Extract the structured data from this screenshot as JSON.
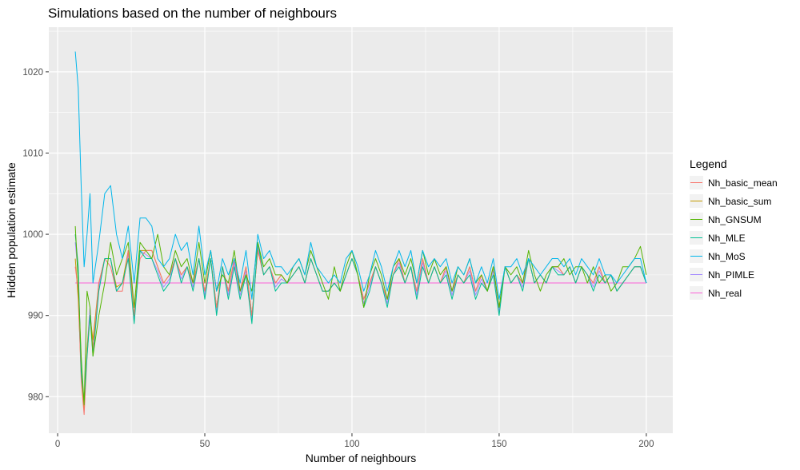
{
  "chart_data": {
    "type": "line",
    "title": "Simulations based on the number of neighbours",
    "xlabel": "Number of neighbours",
    "ylabel": "Hidden population estimate",
    "xlim": [
      -3,
      209
    ],
    "ylim": [
      975.5,
      1025.5
    ],
    "x_ticks": [
      0,
      50,
      100,
      150,
      200
    ],
    "y_ticks": [
      980,
      990,
      1000,
      1010,
      1020
    ],
    "grid": true,
    "legend": {
      "title": "Legend",
      "position": "right"
    },
    "series": [
      {
        "name": "Nh_basic_mean",
        "color": "#F8766D",
        "key": "basic_mean"
      },
      {
        "name": "Nh_basic_sum",
        "color": "#C49A00",
        "key": "basic_sum"
      },
      {
        "name": "Nh_GNSUM",
        "color": "#53B400",
        "key": "gnsum"
      },
      {
        "name": "Nh_MLE",
        "color": "#00C094",
        "key": "mle"
      },
      {
        "name": "Nh_MoS",
        "color": "#00B6EB",
        "key": "mos"
      },
      {
        "name": "Nh_PIMLE",
        "color": "#A58AFF",
        "key": "pimle"
      },
      {
        "name": "Nh_real",
        "color": "#FB61D7",
        "key": "real"
      }
    ],
    "x": [
      6,
      7,
      8,
      9,
      10,
      11,
      12,
      14,
      16,
      18,
      20,
      22,
      24,
      26,
      28,
      30,
      32,
      34,
      36,
      38,
      40,
      42,
      44,
      46,
      48,
      50,
      52,
      54,
      56,
      58,
      60,
      62,
      64,
      66,
      68,
      70,
      72,
      74,
      76,
      78,
      80,
      82,
      84,
      86,
      88,
      90,
      92,
      94,
      96,
      98,
      100,
      102,
      104,
      106,
      108,
      110,
      112,
      114,
      116,
      118,
      120,
      122,
      124,
      126,
      128,
      130,
      132,
      134,
      136,
      138,
      140,
      142,
      144,
      146,
      148,
      150,
      152,
      154,
      156,
      158,
      160,
      162,
      164,
      166,
      168,
      170,
      172,
      174,
      176,
      178,
      180,
      182,
      184,
      186,
      188,
      190,
      192,
      194,
      196,
      198,
      200
    ],
    "values": {
      "basic_mean": [
        996,
        993,
        982,
        977.8,
        985,
        990,
        986,
        994,
        997,
        996,
        993,
        993,
        998,
        990,
        997,
        998,
        998,
        996,
        994,
        995,
        997,
        995,
        996,
        994,
        997,
        993,
        997,
        991,
        996,
        993,
        997,
        993,
        996,
        990,
        998,
        995,
        996,
        994,
        995,
        994,
        995,
        996,
        994,
        997,
        995,
        993,
        993,
        994,
        993,
        995,
        997,
        995,
        992,
        994,
        996,
        994,
        992,
        995,
        997,
        994,
        996,
        993,
        997,
        994,
        996,
        994,
        996,
        993,
        995,
        994,
        996,
        993,
        995,
        993,
        996,
        991,
        996,
        994,
        995,
        994,
        997,
        994,
        995,
        994,
        996,
        996,
        995,
        996,
        994,
        996,
        995,
        994,
        996,
        994,
        995,
        993,
        994,
        995,
        996,
        996,
        994
      ],
      "basic_sum": [
        997,
        992,
        983,
        978.5,
        986,
        990,
        987,
        994,
        997,
        997,
        993.5,
        994,
        998,
        990,
        998,
        998,
        998,
        996,
        994,
        995,
        997,
        995,
        996,
        994,
        997,
        993,
        997,
        991,
        996,
        993,
        997,
        993,
        996,
        990,
        998,
        995,
        996,
        994,
        995,
        994,
        995,
        996,
        994,
        997,
        995,
        993,
        993,
        994,
        993,
        995,
        997,
        995,
        992,
        994,
        996,
        994,
        992,
        995,
        997,
        994,
        996,
        993,
        997,
        994,
        996,
        994,
        996,
        993,
        995,
        994,
        996,
        993,
        995,
        993,
        996,
        991,
        996,
        994,
        995,
        994,
        997,
        994,
        995,
        994,
        996,
        996,
        995,
        996,
        994,
        996,
        995,
        994,
        996,
        994,
        995,
        993,
        994,
        995,
        996,
        996,
        994
      ],
      "gnsum": [
        1001,
        994,
        985,
        979,
        993,
        991,
        985,
        990,
        994,
        999,
        995,
        997,
        999,
        991,
        999,
        998,
        997,
        1000,
        996,
        995,
        998,
        996,
        997,
        994,
        999,
        994,
        998,
        993,
        995,
        994,
        998,
        993,
        995,
        993,
        999,
        996,
        997,
        995,
        995,
        994,
        996,
        997,
        995,
        998,
        996,
        994,
        992,
        996,
        993,
        996,
        998,
        995,
        991,
        995,
        997,
        995,
        992,
        996,
        997,
        995,
        997,
        994,
        998,
        995,
        997,
        995,
        996,
        993,
        996,
        995,
        997,
        994,
        995,
        993,
        996,
        991,
        996,
        995,
        996,
        994,
        998,
        995,
        993,
        995,
        996,
        996,
        997,
        995,
        996,
        996,
        994,
        996,
        994,
        995,
        993,
        994,
        996,
        996,
        997,
        998.5,
        995
      ],
      "mle": [
        1000,
        996,
        983,
        979.5,
        985,
        990,
        985,
        993,
        997,
        997,
        993,
        994,
        997,
        989,
        998,
        997,
        997,
        995,
        993,
        994,
        997,
        994,
        996,
        993,
        997,
        992,
        997,
        990,
        996,
        992,
        996,
        992,
        995,
        989,
        999,
        995,
        996,
        993,
        994,
        994,
        995,
        996,
        994,
        997,
        995,
        993,
        993,
        994,
        993,
        995,
        997,
        995,
        991,
        993,
        996,
        994,
        991,
        995,
        996,
        994,
        996,
        992,
        996,
        994,
        996,
        994,
        995,
        992,
        995,
        994,
        995,
        992,
        994,
        993,
        995,
        990,
        996,
        994,
        995,
        993,
        997,
        994,
        995,
        994,
        996,
        995,
        995,
        996,
        994,
        996,
        995,
        993,
        995,
        994,
        995,
        993,
        994,
        995,
        996,
        996,
        994
      ],
      "mos": [
        1022.5,
        1018,
        1006,
        996,
        1000,
        1005,
        994,
        999,
        1005,
        1006,
        1000,
        997,
        1001,
        994,
        1002,
        1002,
        1001,
        997,
        996,
        997,
        1000,
        998,
        999,
        995,
        1001,
        995,
        998,
        993,
        997,
        995,
        997,
        994,
        998,
        992,
        1000,
        997,
        998,
        996,
        996,
        995,
        996,
        997,
        995,
        999,
        996,
        995,
        994,
        995,
        994,
        997,
        998,
        996,
        993,
        995,
        998,
        996,
        993,
        996,
        998,
        996,
        998,
        994,
        998,
        996,
        997,
        996,
        997,
        994,
        996,
        995,
        997,
        994,
        996,
        994,
        997,
        992,
        996,
        996,
        997,
        995,
        997,
        996,
        995,
        996,
        997,
        997,
        996,
        997,
        995,
        997,
        996,
        995,
        997,
        995,
        995,
        994,
        995,
        996,
        997,
        997,
        994
      ],
      "pimle": [
        999,
        995,
        984,
        979,
        986,
        991,
        985.5,
        993.5,
        997,
        997,
        993,
        994,
        997.5,
        989.5,
        998,
        997.5,
        997,
        995.5,
        993.5,
        994.5,
        997,
        994.5,
        996,
        993.5,
        997,
        992.5,
        997,
        990.5,
        996,
        992.5,
        996.5,
        992.5,
        995.5,
        989.5,
        998.5,
        995,
        996,
        993.5,
        994.5,
        994,
        995,
        996,
        994,
        997,
        995,
        993,
        993,
        994,
        993,
        995,
        997,
        995,
        991.5,
        993.5,
        996,
        994,
        991.5,
        995,
        996.5,
        994,
        996,
        992.5,
        996.5,
        994,
        996,
        994,
        995.5,
        992.5,
        995,
        994,
        995.5,
        992.5,
        994.5,
        993,
        995.5,
        990.5,
        996,
        994,
        995,
        993.5,
        997,
        994,
        995,
        994,
        996,
        995.5,
        995,
        996,
        994,
        996,
        995,
        993.5,
        995.5,
        994,
        995,
        993,
        994,
        995,
        996,
        996,
        994
      ],
      "real": [
        994,
        994,
        994,
        994,
        994,
        994,
        994,
        994,
        994,
        994,
        994,
        994,
        994,
        994,
        994,
        994,
        994,
        994,
        994,
        994,
        994,
        994,
        994,
        994,
        994,
        994,
        994,
        994,
        994,
        994,
        994,
        994,
        994,
        994,
        994,
        994,
        994,
        994,
        994,
        994,
        994,
        994,
        994,
        994,
        994,
        994,
        994,
        994,
        994,
        994,
        994,
        994,
        994,
        994,
        994,
        994,
        994,
        994,
        994,
        994,
        994,
        994,
        994,
        994,
        994,
        994,
        994,
        994,
        994,
        994,
        994,
        994,
        994,
        994,
        994,
        994,
        994,
        994,
        994,
        994,
        994,
        994,
        994,
        994,
        994,
        994,
        994,
        994,
        994,
        994,
        994,
        994,
        994,
        994,
        994,
        994,
        994,
        994,
        994,
        994,
        994
      ]
    }
  }
}
